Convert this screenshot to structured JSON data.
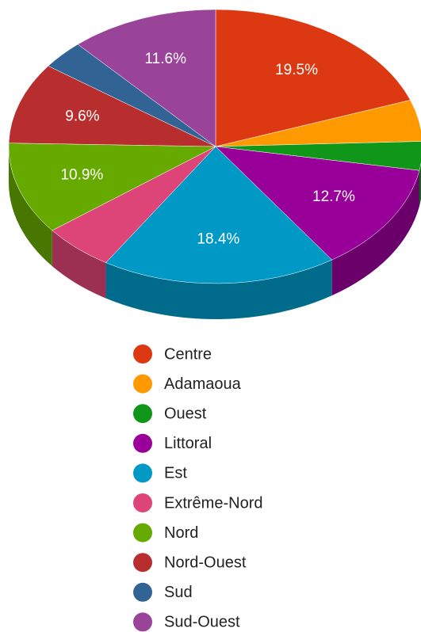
{
  "chart_data": {
    "type": "pie",
    "categories": [
      "Centre",
      "Adamaoua",
      "Ouest",
      "Littoral",
      "Est",
      "Extrême-Nord",
      "Nord",
      "Nord-Ouest",
      "Sud",
      "Sud-Ouest"
    ],
    "values": [
      19.5,
      4.9,
      3.4,
      12.7,
      18.4,
      5.6,
      10.9,
      9.6,
      3.4,
      11.6
    ],
    "value_labels": [
      "19.5%",
      null,
      null,
      "12.7%",
      "18.4%",
      null,
      "10.9%",
      "9.6%",
      null,
      "11.6%"
    ],
    "colors": [
      "#dc3912",
      "#ff9900",
      "#109618",
      "#990099",
      "#0099c6",
      "#dd4477",
      "#66aa00",
      "#b82e2e",
      "#316395",
      "#994499"
    ],
    "legend": "bottom"
  }
}
